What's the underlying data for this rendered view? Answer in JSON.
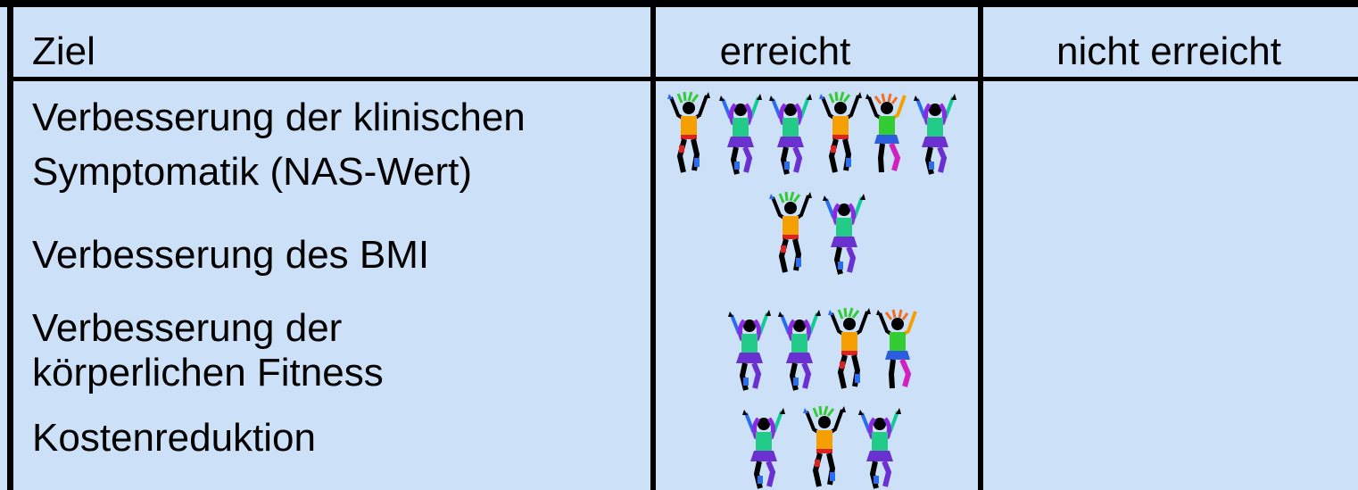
{
  "table": {
    "header": [
      "Ziel",
      "erreicht",
      "nicht erreicht"
    ],
    "goals": [
      [
        "Verbesserung der klinischen",
        "Symptomatik (NAS-Wert)"
      ],
      [
        "Verbesserung des BMI"
      ],
      [
        "Verbesserung der",
        "körperlichen Fitness"
      ],
      [
        "Kostenreduktion"
      ]
    ]
  }
}
